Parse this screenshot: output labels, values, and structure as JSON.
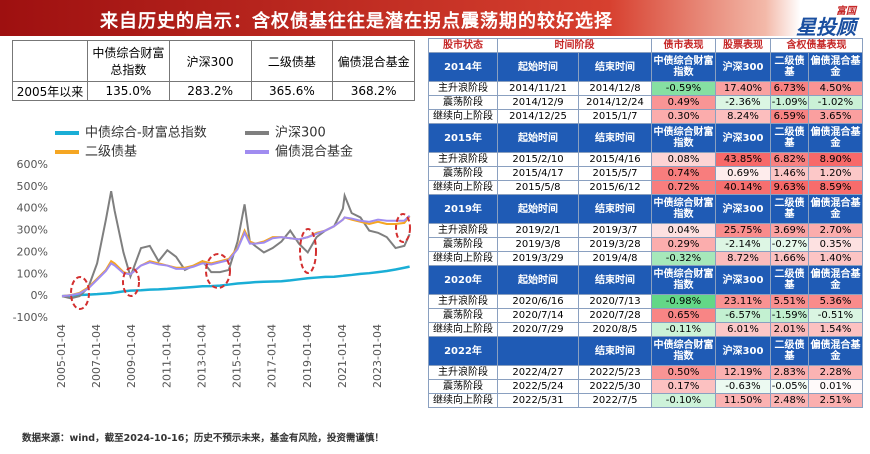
{
  "title": "来自历史的启示：含权债基往往是潜在拐点震荡期的较好选择",
  "logo": {
    "brand": "富国",
    "name": "星投顾"
  },
  "summary_table": {
    "columns": [
      "中债综合财富总指数",
      "沪深300",
      "二级债基",
      "偏债混合基金"
    ],
    "rows": [
      {
        "label": "2005年以来",
        "values": [
          "135.0%",
          "283.2%",
          "365.6%",
          "368.2%"
        ]
      }
    ]
  },
  "chart_data": {
    "type": "line",
    "x": [
      2005,
      2005.5,
      2006,
      2006.5,
      2007,
      2007.5,
      2007.8,
      2008,
      2008.5,
      2008.9,
      2009.5,
      2010,
      2010.5,
      2011,
      2011.5,
      2012,
      2012.5,
      2013,
      2013.5,
      2014,
      2014.5,
      2015,
      2015.4,
      2015.7,
      2016,
      2016.5,
      2017,
      2017.5,
      2018,
      2018.5,
      2019,
      2019.5,
      2020,
      2020.5,
      2021,
      2021.1,
      2021.5,
      2022,
      2022.5,
      2023,
      2023.5,
      2024,
      2024.5,
      2024.8
    ],
    "series": [
      {
        "name": "中债综合-财富总指数",
        "color": "#1aaed6",
        "values": [
          0,
          2,
          5,
          7,
          9,
          12,
          14,
          16,
          22,
          25,
          27,
          30,
          31,
          33,
          36,
          39,
          42,
          45,
          46,
          48,
          53,
          58,
          60,
          62,
          64,
          66,
          67,
          68,
          72,
          77,
          82,
          85,
          88,
          89,
          93,
          94,
          97,
          102,
          105,
          110,
          115,
          122,
          130,
          135
        ]
      },
      {
        "name": "沪深300",
        "color": "#7f7f7f",
        "values": [
          0,
          -10,
          0,
          40,
          150,
          350,
          480,
          390,
          200,
          90,
          220,
          230,
          160,
          210,
          180,
          120,
          140,
          160,
          110,
          110,
          120,
          250,
          420,
          250,
          230,
          200,
          220,
          250,
          300,
          240,
          200,
          270,
          300,
          320,
          400,
          460,
          380,
          360,
          300,
          290,
          270,
          220,
          230,
          283.2
        ]
      },
      {
        "name": "二级债基",
        "color": "#f5a623",
        "values": [
          0,
          5,
          15,
          40,
          80,
          120,
          160,
          150,
          110,
          100,
          140,
          160,
          150,
          140,
          130,
          130,
          140,
          160,
          150,
          160,
          170,
          220,
          300,
          250,
          240,
          250,
          270,
          270,
          265,
          260,
          270,
          290,
          300,
          320,
          350,
          360,
          350,
          340,
          330,
          340,
          330,
          330,
          335,
          365.6
        ]
      },
      {
        "name": "偏债混合基金",
        "color": "#a08cf0",
        "values": [
          0,
          4,
          12,
          35,
          75,
          115,
          150,
          140,
          105,
          100,
          140,
          155,
          145,
          140,
          125,
          125,
          135,
          150,
          145,
          155,
          165,
          215,
          290,
          240,
          240,
          245,
          265,
          270,
          265,
          260,
          270,
          285,
          300,
          320,
          350,
          360,
          355,
          345,
          340,
          350,
          345,
          345,
          345,
          368.2
        ]
      }
    ],
    "xlim": [
      2005,
      2024.8
    ],
    "xticks": [
      {
        "value": 2005,
        "label": "2005-01-04"
      },
      {
        "value": 2007,
        "label": "2007-01-04"
      },
      {
        "value": 2009,
        "label": "2009-01-04"
      },
      {
        "value": 2011,
        "label": "2011-01-04"
      },
      {
        "value": 2013,
        "label": "2013-01-04"
      },
      {
        "value": 2015,
        "label": "2015-01-04"
      },
      {
        "value": 2017,
        "label": "2017-01-04"
      },
      {
        "value": 2019,
        "label": "2019-01-04"
      },
      {
        "value": 2021,
        "label": "2021-01-04"
      },
      {
        "value": 2023,
        "label": "2023-01-04"
      }
    ],
    "ylim": [
      -100,
      600
    ],
    "yticks": [
      {
        "value": -100,
        "label": "-100%"
      },
      {
        "value": 0,
        "label": "0%"
      },
      {
        "value": 100,
        "label": "100%"
      },
      {
        "value": 200,
        "label": "200%"
      },
      {
        "value": 300,
        "label": "300%"
      },
      {
        "value": 400,
        "label": "400%"
      },
      {
        "value": 500,
        "label": "500%"
      },
      {
        "value": 600,
        "label": "600%"
      }
    ],
    "grid": false
  },
  "right_table": {
    "header": [
      "股市状态",
      "时间阶段",
      "债市表现",
      "股票表现",
      "含权债基表现"
    ],
    "blocks": [
      {
        "year": "2014年",
        "columns": [
          "起始时间",
          "结束时间",
          "中债综合财富指数",
          "沪深300",
          "二级债基",
          "偏债混合基金"
        ],
        "rows": [
          [
            "主升浪阶段",
            "2014/11/21",
            "2014/12/8",
            "-0.59%",
            "17.40%",
            "6.73%",
            "4.50%"
          ],
          [
            "震荡阶段",
            "2014/12/9",
            "2014/12/24",
            "0.49%",
            "-2.36%",
            "-1.09%",
            "-1.02%"
          ],
          [
            "继续向上阶段",
            "2014/12/25",
            "2015/1/7",
            "0.30%",
            "8.24%",
            "6.59%",
            "3.65%"
          ]
        ]
      },
      {
        "year": "2015年",
        "columns": [
          "起始时间",
          "结束时间",
          "中债综合财富指数",
          "沪深300",
          "二级债基",
          "偏债混合基金"
        ],
        "rows": [
          [
            "主升浪阶段",
            "2015/2/10",
            "2015/4/16",
            "0.08%",
            "43.85%",
            "6.82%",
            "8.90%"
          ],
          [
            "震荡阶段",
            "2015/4/17",
            "2015/5/7",
            "0.74%",
            "0.69%",
            "1.46%",
            "1.20%"
          ],
          [
            "继续向上阶段",
            "2015/5/8",
            "2015/6/12",
            "0.72%",
            "40.14%",
            "9.63%",
            "8.59%"
          ]
        ]
      },
      {
        "year": "2019年",
        "columns": [
          "起始时间",
          "结束时间",
          "中债综合财富指数",
          "沪深300",
          "二级债基",
          "偏债混合基金"
        ],
        "rows": [
          [
            "主升浪阶段",
            "2019/2/1",
            "2019/3/7",
            "0.04%",
            "25.75%",
            "3.69%",
            "2.70%"
          ],
          [
            "震荡阶段",
            "2019/3/8",
            "2019/3/28",
            "0.29%",
            "-2.14%",
            "-0.27%",
            "0.35%"
          ],
          [
            "继续向上阶段",
            "2019/3/29",
            "2019/4/8",
            "-0.32%",
            "8.72%",
            "1.66%",
            "1.40%"
          ]
        ]
      },
      {
        "year": "2020年",
        "columns": [
          "起始时间",
          "结束时间",
          "中债综合财富指数",
          "沪深300",
          "二级债基",
          "偏债混合基金"
        ],
        "rows": [
          [
            "主升浪阶段",
            "2020/6/16",
            "2020/7/13",
            "-0.98%",
            "23.11%",
            "5.51%",
            "5.36%"
          ],
          [
            "震荡阶段",
            "2020/7/14",
            "2020/7/28",
            "0.65%",
            "-6.57%",
            "-1.59%",
            "-0.51%"
          ],
          [
            "继续向上阶段",
            "2020/7/29",
            "2020/8/5",
            "-0.11%",
            "6.01%",
            "2.01%",
            "1.54%"
          ]
        ]
      },
      {
        "year": "2022年",
        "columns": [
          null,
          "结束时间",
          "中债综合财富指数",
          "沪深300",
          "二级债基",
          "偏债混合基金"
        ],
        "rows": [
          [
            "主升浪阶段",
            "2022/4/27",
            "2022/5/23",
            "0.50%",
            "12.19%",
            "2.83%",
            "2.28%"
          ],
          [
            "震荡阶段",
            "2022/5/24",
            "2022/5/30",
            "0.17%",
            "-0.63%",
            "-0.05%",
            "0.01%"
          ],
          [
            "继续向上阶段",
            "2022/5/31",
            "2022/7/5",
            "-0.10%",
            "11.50%",
            "2.48%",
            "2.51%"
          ]
        ]
      }
    ]
  },
  "footer": "数据来源：wind，截至2024-10-16；历史不预示未来，基金有风险，投资需谨慎！"
}
